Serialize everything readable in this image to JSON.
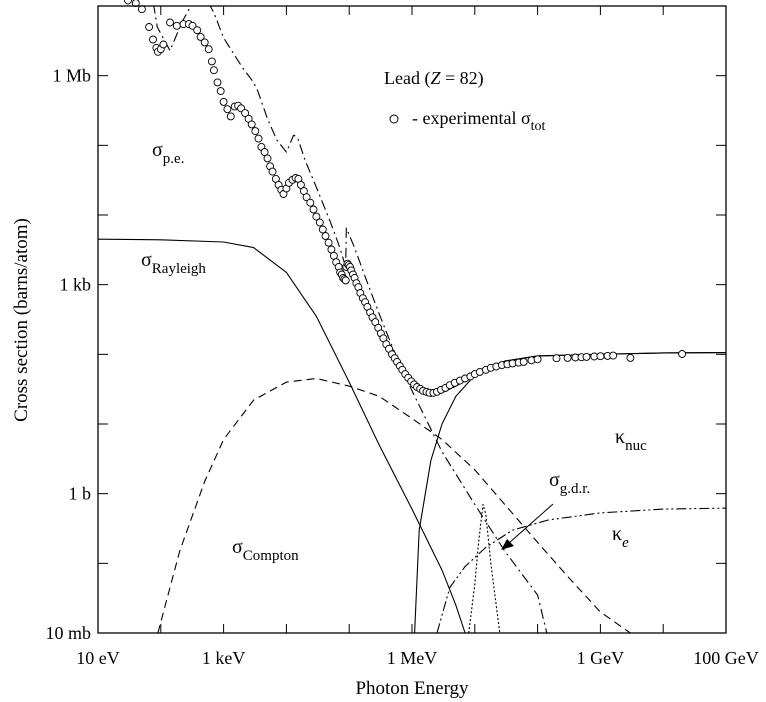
{
  "chart_data": {
    "type": "line",
    "x_scale": "log",
    "y_scale": "log",
    "xlabel": "Photon Energy",
    "ylabel": "Cross section  (barns/atom)",
    "xlim_eV": [
      10,
      100000000000.0
    ],
    "ylim_barns": [
      0.01,
      10000000.0
    ],
    "x_ticks": [
      {
        "value": 10,
        "label": "10 eV"
      },
      {
        "value": 1000,
        "label": "1 keV"
      },
      {
        "value": 1000000,
        "label": "1 MeV"
      },
      {
        "value": 1000000000,
        "label": "1 GeV"
      },
      {
        "value": 100000000000,
        "label": "100 GeV"
      }
    ],
    "y_ticks": [
      {
        "value": 0.01,
        "label": "10 mb"
      },
      {
        "value": 1,
        "label": "1 b"
      },
      {
        "value": 1000,
        "label": "1 kb"
      },
      {
        "value": 1000000,
        "label": "1 Mb"
      }
    ],
    "legend": {
      "title_text": "Lead (",
      "title_var": "Z",
      "title_rest": " = 82)",
      "marker_text": "- experimental σ",
      "marker_sub": "tot"
    },
    "series": [
      {
        "name": "σ_p.e.",
        "label": "σ",
        "sub": "p.e.",
        "style": "dashdot",
        "points": [
          [
            10,
            320000000.0
          ],
          [
            30,
            100000000.0
          ],
          [
            60,
            40000000.0
          ],
          [
            88,
            5000000.0
          ],
          [
            100,
            4000000.0
          ],
          [
            140,
            2300000.0
          ],
          [
            220,
            6000000.0
          ],
          [
            300,
            10000000.0
          ],
          [
            420,
            12000000.0
          ],
          [
            550,
            12000000.0
          ],
          [
            700,
            8000000.0
          ],
          [
            1000,
            3500000.0
          ],
          [
            2000,
            1300000.0
          ],
          [
            3000,
            800000.0
          ],
          [
            3500,
            600000.0
          ],
          [
            5000,
            240000.0
          ],
          [
            7000,
            120000.0
          ],
          [
            10000,
            80000.0
          ],
          [
            13000,
            140000.0
          ],
          [
            15000,
            130000.0
          ],
          [
            20000,
            60000.0
          ],
          [
            30000,
            25000.0
          ],
          [
            50000,
            8000
          ],
          [
            70000,
            3500
          ],
          [
            88000,
            1800
          ],
          [
            90000,
            6500
          ],
          [
            120000,
            3500
          ],
          [
            200000,
            1000
          ],
          [
            300000,
            380
          ],
          [
            500000,
            120
          ],
          [
            1000000,
            30
          ],
          [
            3000000,
            4
          ],
          [
            10000000,
            0.7
          ],
          [
            30000000,
            0.15
          ],
          [
            100000000,
            0.035
          ],
          [
            140000000,
            0.01
          ]
        ]
      },
      {
        "name": "σ_Rayleigh",
        "label": "σ",
        "sub": "Rayleigh",
        "style": "solid",
        "points": [
          [
            10,
            4500
          ],
          [
            100,
            4400
          ],
          [
            1000,
            4100
          ],
          [
            3000,
            3400
          ],
          [
            10000,
            1500
          ],
          [
            30000,
            350
          ],
          [
            100000,
            40
          ],
          [
            300000,
            5
          ],
          [
            1000000,
            0.6
          ],
          [
            3000000,
            0.08
          ],
          [
            5000000,
            0.025
          ],
          [
            7000000,
            0.01
          ]
        ]
      },
      {
        "name": "σ_Compton",
        "label": "σ",
        "sub": "Compton",
        "style": "dashed",
        "points": [
          [
            90,
            0.01
          ],
          [
            200,
            0.15
          ],
          [
            500,
            1.5
          ],
          [
            1000,
            6
          ],
          [
            3000,
            22
          ],
          [
            10000,
            40
          ],
          [
            30000,
            45
          ],
          [
            100000,
            35
          ],
          [
            300000,
            25
          ],
          [
            1000000,
            12
          ],
          [
            3000000,
            6
          ],
          [
            10000000,
            2.2
          ],
          [
            30000000,
            0.7
          ],
          [
            100000000,
            0.2
          ],
          [
            300000000,
            0.065
          ],
          [
            1000000000,
            0.02
          ],
          [
            3000000000,
            0.01
          ]
        ]
      },
      {
        "name": "κ_nuc",
        "label": "κ",
        "sub": "nuc",
        "style": "solid",
        "points": [
          [
            1100000,
            0.01
          ],
          [
            1300000,
            0.3
          ],
          [
            2000000,
            3
          ],
          [
            3000000,
            10
          ],
          [
            5000000,
            25
          ],
          [
            10000000,
            50
          ],
          [
            30000000,
            80
          ],
          [
            100000000,
            95
          ],
          [
            1000000000,
            100
          ],
          [
            10000000000,
            105
          ],
          [
            100000000000,
            106
          ]
        ]
      },
      {
        "name": "κ_e",
        "label": "κ",
        "sub": "e",
        "style": "dashdotdot",
        "points": [
          [
            2500000,
            0.01
          ],
          [
            4000000,
            0.045
          ],
          [
            7000000,
            0.09
          ],
          [
            15000000,
            0.17
          ],
          [
            40000000,
            0.3
          ],
          [
            150000000,
            0.42
          ],
          [
            1000000000,
            0.53
          ],
          [
            10000000000,
            0.6
          ],
          [
            100000000000,
            0.62
          ]
        ]
      },
      {
        "name": "σ_g.d.r.",
        "label": "σ",
        "sub": "g.d.r.",
        "style": "dotted",
        "points": [
          [
            8000000,
            0.01
          ],
          [
            10000000,
            0.05
          ],
          [
            11500000,
            0.2
          ],
          [
            13500000,
            0.7
          ],
          [
            15000000,
            0.5
          ],
          [
            18000000,
            0.1
          ],
          [
            25000000,
            0.01
          ]
        ]
      },
      {
        "name": "total",
        "style": "solid",
        "points": [
          [
            1000000,
            40
          ],
          [
            2000000,
            25
          ],
          [
            3000000,
            28
          ],
          [
            5000000,
            35
          ],
          [
            10000000,
            50
          ],
          [
            30000000,
            80
          ],
          [
            100000000,
            95
          ],
          [
            1000000000,
            100
          ],
          [
            10000000000,
            105
          ],
          [
            100000000000,
            106
          ]
        ]
      }
    ],
    "experimental": [
      [
        30,
        12000000.0
      ],
      [
        40,
        11000000.0
      ],
      [
        50,
        9000000.0
      ],
      [
        65,
        5000000.0
      ],
      [
        75,
        3300000.0
      ],
      [
        85,
        2500000.0
      ],
      [
        90,
        2200000.0
      ],
      [
        100,
        2400000.0
      ],
      [
        110,
        2800000.0
      ],
      [
        140,
        5800000.0
      ],
      [
        180,
        5200000.0
      ],
      [
        230,
        5500000.0
      ],
      [
        280,
        5500000.0
      ],
      [
        320,
        5200000.0
      ],
      [
        380,
        4500000.0
      ],
      [
        430,
        3600000.0
      ],
      [
        500,
        3000000.0
      ],
      [
        580,
        2400000.0
      ],
      [
        650,
        1600000.0
      ],
      [
        700,
        1200000.0
      ],
      [
        800,
        800000.0
      ],
      [
        900,
        600000.0
      ],
      [
        1000,
        420000.0
      ],
      [
        1150,
        330000.0
      ],
      [
        1300,
        260000.0
      ],
      [
        1500,
        360000.0
      ],
      [
        1700,
        370000.0
      ],
      [
        1900,
        340000.0
      ],
      [
        2200,
        290000.0
      ],
      [
        2500,
        240000.0
      ],
      [
        2800,
        200000.0
      ],
      [
        3200,
        160000.0
      ],
      [
        3600,
        125000.0
      ],
      [
        4000,
        95000.0
      ],
      [
        4500,
        80000.0
      ],
      [
        5000,
        65000.0
      ],
      [
        5500,
        50000.0
      ],
      [
        6000,
        42000.0
      ],
      [
        6800,
        33000.0
      ],
      [
        7500,
        27000.0
      ],
      [
        8300,
        23000.0
      ],
      [
        9000,
        20000.0
      ],
      [
        10000,
        24000.0
      ],
      [
        11000,
        29000.0
      ],
      [
        12500,
        32000.0
      ],
      [
        14000,
        34000.0
      ],
      [
        15500,
        33000.0
      ],
      [
        17000,
        27000.0
      ],
      [
        19000,
        22000.0
      ],
      [
        21000,
        18000.0
      ],
      [
        24000,
        15000.0
      ],
      [
        27000,
        12000.0
      ],
      [
        30000,
        9500
      ],
      [
        34000,
        7800
      ],
      [
        38000,
        6200
      ],
      [
        42000,
        5000
      ],
      [
        47000,
        4000
      ],
      [
        52000,
        3200
      ],
      [
        57000,
        2600
      ],
      [
        62000,
        2100
      ],
      [
        68000,
        1800
      ],
      [
        72000,
        1500
      ],
      [
        76000,
        1400
      ],
      [
        80000,
        1250
      ],
      [
        84000,
        1200
      ],
      [
        88000,
        1150
      ],
      [
        90000,
        1800
      ],
      [
        94000,
        2000
      ],
      [
        98000,
        1900
      ],
      [
        103000,
        1800
      ],
      [
        108000,
        1600
      ],
      [
        115000,
        1400
      ],
      [
        122000,
        1250
      ],
      [
        130000,
        1050
      ],
      [
        140000,
        920
      ],
      [
        150000,
        760
      ],
      [
        165000,
        640
      ],
      [
        180000,
        560
      ],
      [
        195000,
        480
      ],
      [
        215000,
        400
      ],
      [
        235000,
        340
      ],
      [
        260000,
        290
      ],
      [
        290000,
        240
      ],
      [
        320000,
        200
      ],
      [
        350000,
        170
      ],
      [
        390000,
        140
      ],
      [
        430000,
        120
      ],
      [
        480000,
        100
      ],
      [
        530000,
        88
      ],
      [
        580000,
        78
      ],
      [
        640000,
        68
      ],
      [
        700000,
        60
      ],
      [
        780000,
        52
      ],
      [
        870000,
        46
      ],
      [
        970000,
        41
      ],
      [
        1080000,
        37
      ],
      [
        1200000,
        34
      ],
      [
        1350000,
        32
      ],
      [
        1500000,
        30
      ],
      [
        1700000,
        29
      ],
      [
        1900000,
        28
      ],
      [
        2200000,
        28
      ],
      [
        2500000,
        29
      ],
      [
        2900000,
        31
      ],
      [
        3400000,
        33
      ],
      [
        4000000,
        36
      ],
      [
        4800000,
        39
      ],
      [
        5800000,
        42
      ],
      [
        7000000,
        45
      ],
      [
        8500000,
        48
      ],
      [
        10000000,
        52
      ],
      [
        12000000,
        56
      ],
      [
        15000000,
        60
      ],
      [
        18000000,
        64
      ],
      [
        22000000,
        67
      ],
      [
        27000000,
        70
      ],
      [
        33000000,
        72
      ],
      [
        40000000,
        74
      ],
      [
        50000000,
        76
      ],
      [
        60000000,
        78
      ],
      [
        80000000,
        82
      ],
      [
        100000000,
        85
      ],
      [
        200000000,
        88
      ],
      [
        300000000,
        89
      ],
      [
        400000000,
        90
      ],
      [
        500000000,
        91
      ],
      [
        600000000,
        92
      ],
      [
        800000000,
        93
      ],
      [
        1000000000,
        94
      ],
      [
        1300000000,
        95
      ],
      [
        1600000000,
        96
      ],
      [
        3000000000,
        89
      ],
      [
        20000000000,
        101
      ]
    ]
  }
}
